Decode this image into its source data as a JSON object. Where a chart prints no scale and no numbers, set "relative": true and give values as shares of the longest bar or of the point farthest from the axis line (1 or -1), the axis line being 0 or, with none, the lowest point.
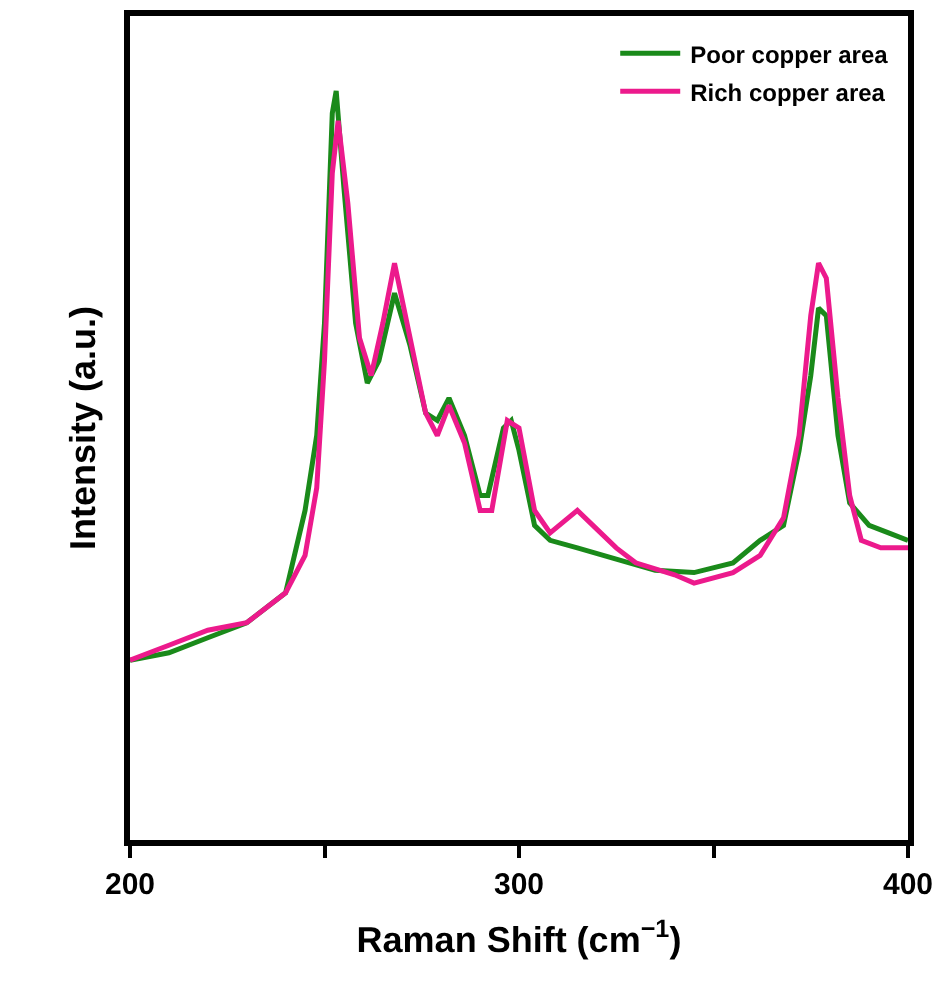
{
  "chart_data": {
    "type": "line",
    "relative": true,
    "xlabel": "Raman Shift (cm$^{−1}$)",
    "ylabel": "Intensity (a.u.)",
    "xlim": [
      200,
      400
    ],
    "xticks": [
      200,
      {
        "value": 250,
        "label": null
      },
      300,
      {
        "value": 350,
        "label": null
      },
      400
    ],
    "grid": false,
    "legend": "top right",
    "marker": "none",
    "line_style": "solid",
    "tick_labels": "x",
    "series": [
      {
        "name": "Poor copper area",
        "color": "#1a8a1a",
        "x": [
          200,
          210,
          220,
          230,
          240,
          245,
          248,
          250,
          252,
          253,
          255,
          258,
          261,
          264,
          268,
          272,
          276,
          279,
          282,
          286,
          290,
          292,
          296,
          298,
          300,
          304,
          308,
          315,
          325,
          335,
          345,
          355,
          362,
          368,
          372,
          375,
          377,
          379,
          382,
          385,
          390,
          395,
          400
        ],
        "values": [
          0.24,
          0.25,
          0.27,
          0.29,
          0.33,
          0.44,
          0.54,
          0.69,
          0.97,
          1.0,
          0.87,
          0.69,
          0.61,
          0.64,
          0.73,
          0.66,
          0.57,
          0.56,
          0.59,
          0.54,
          0.46,
          0.46,
          0.55,
          0.56,
          0.52,
          0.42,
          0.4,
          0.39,
          0.375,
          0.36,
          0.357,
          0.37,
          0.4,
          0.42,
          0.52,
          0.62,
          0.71,
          0.7,
          0.54,
          0.45,
          0.42,
          0.41,
          0.4
        ]
      },
      {
        "name": "Rich copper area",
        "color": "#ec1a8c",
        "x": [
          200,
          210,
          220,
          230,
          240,
          245,
          248,
          250,
          252,
          253.5,
          256,
          259,
          262,
          265,
          268,
          272,
          276,
          279,
          282,
          286,
          290,
          293,
          297,
          300,
          304,
          308,
          315,
          320,
          325,
          330,
          340,
          345,
          355,
          362,
          368,
          372,
          375,
          377,
          379,
          382,
          385,
          388,
          393,
          400
        ],
        "values": [
          0.24,
          0.26,
          0.28,
          0.29,
          0.33,
          0.38,
          0.47,
          0.64,
          0.89,
          0.96,
          0.85,
          0.67,
          0.62,
          0.69,
          0.77,
          0.67,
          0.57,
          0.54,
          0.58,
          0.53,
          0.44,
          0.44,
          0.56,
          0.55,
          0.44,
          0.41,
          0.44,
          0.415,
          0.39,
          0.37,
          0.354,
          0.343,
          0.357,
          0.38,
          0.43,
          0.54,
          0.7,
          0.77,
          0.75,
          0.59,
          0.46,
          0.4,
          0.39,
          0.39
        ]
      }
    ]
  }
}
